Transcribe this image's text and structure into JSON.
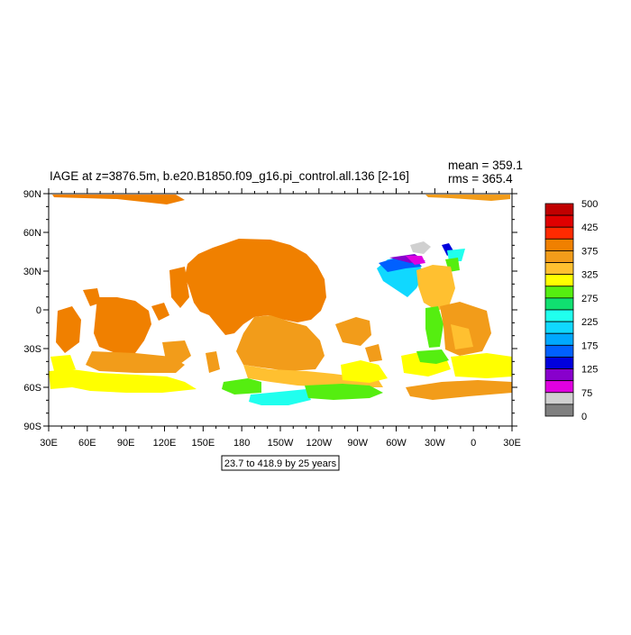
{
  "title": "IAGE at z=3876.5m, b.e20.B1850.f09_g16.pi_control.all.136 [2-16]",
  "stats": {
    "mean": "mean = 359.1",
    "rms": "rms = 365.4"
  },
  "subtitle_box": "23.7 to 418.9 by 25 years",
  "axes": {
    "x_ticks": [
      "30E",
      "60E",
      "90E",
      "120E",
      "150E",
      "180",
      "150W",
      "120W",
      "90W",
      "60W",
      "30W",
      "0",
      "30E"
    ],
    "y_ticks": [
      "90N",
      "60N",
      "30N",
      "0",
      "30S",
      "60S",
      "90S"
    ]
  },
  "colorbar": {
    "labels": [
      "500",
      "425",
      "375",
      "325",
      "275",
      "225",
      "175",
      "125",
      "75",
      "0"
    ],
    "colors": [
      "#c00000",
      "#e00000",
      "#ff2a00",
      "#f08000",
      "#f29c1a",
      "#ffc030",
      "#ffff00",
      "#55ee10",
      "#10e070",
      "#20ffee",
      "#10d8ff",
      "#00a8ff",
      "#0060ff",
      "#0000dd",
      "#8800cc",
      "#e000e0",
      "#d0d0d0",
      "#808080"
    ]
  },
  "chart_data": {
    "type": "heatmap",
    "title": "IAGE at z=3876.5m, b.e20.B1850.f09_g16.pi_control.all.136 [2-16]",
    "variable": "IAGE",
    "depth": "z=3876.5m",
    "case": "b.e20.B1850.f09_g16.pi_control.all.136 [2-16]",
    "units": "years",
    "mean": 359.1,
    "rms": 365.4,
    "contour_min": 23.7,
    "contour_max": 418.9,
    "contour_interval": 25,
    "xlim": [
      "30E",
      "30E"
    ],
    "ylim": [
      "90S",
      "90N"
    ],
    "colorbar_labels": [
      500,
      425,
      375,
      325,
      275,
      225,
      175,
      125,
      75,
      0
    ]
  }
}
